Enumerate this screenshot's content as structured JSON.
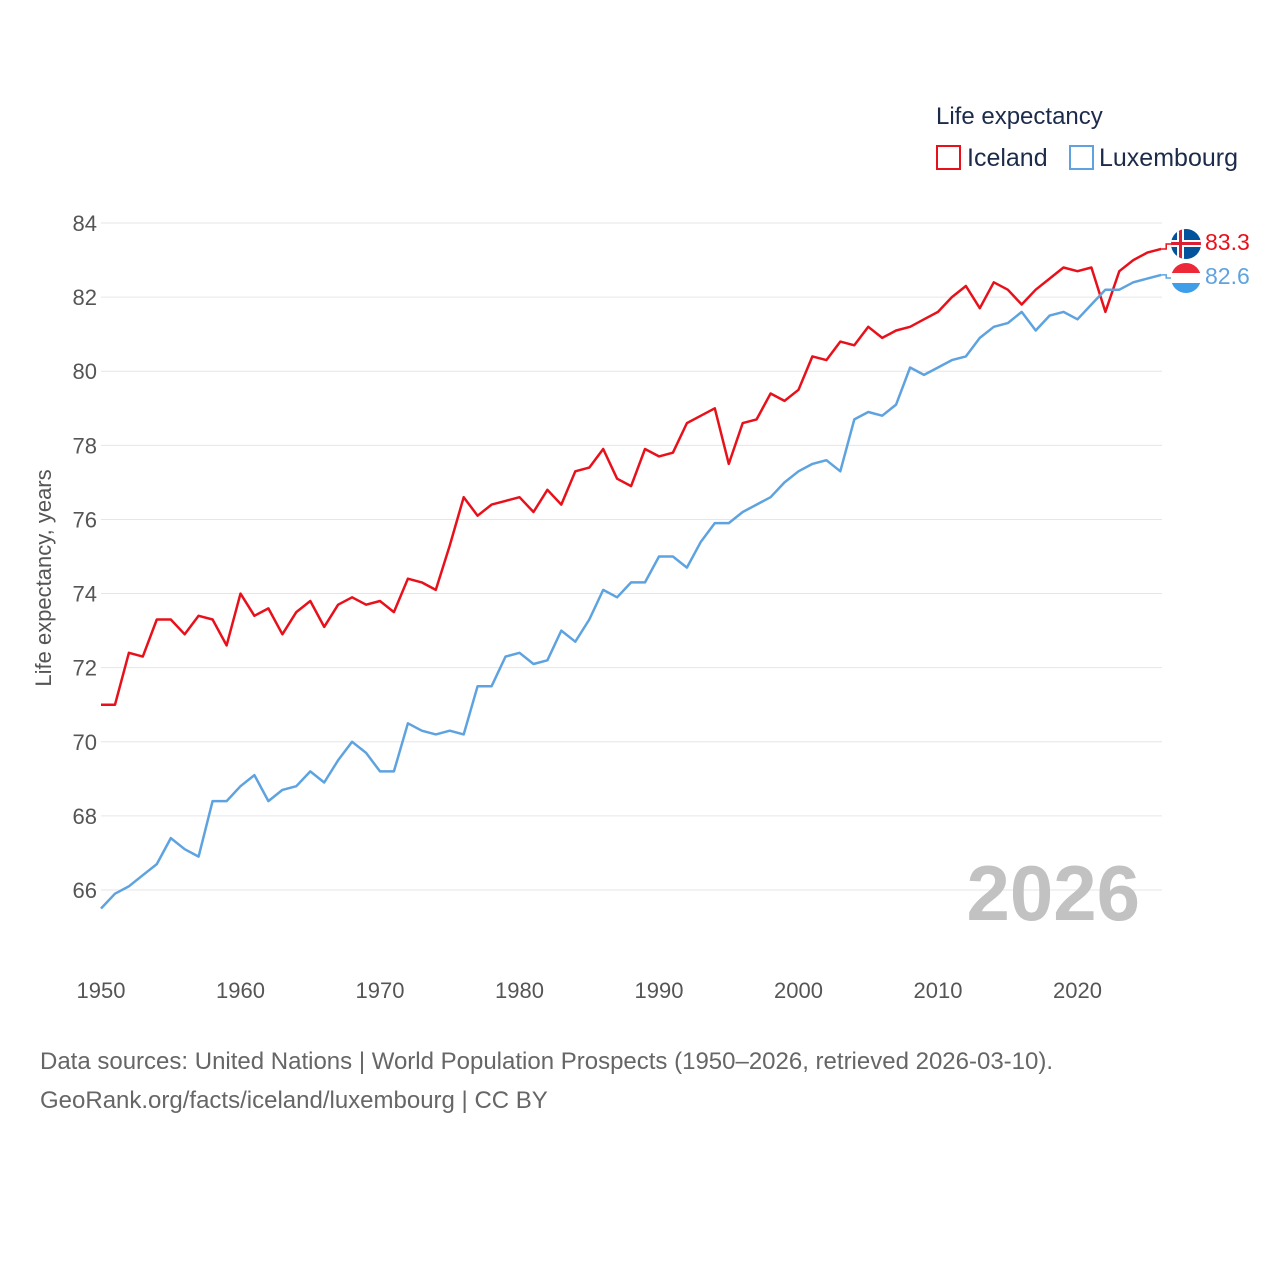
{
  "chart_data": {
    "type": "line",
    "legend_title": "Life expectancy",
    "ylabel": "Life expectancy, years",
    "xlabel": "",
    "xlim": [
      1950,
      2026
    ],
    "ylim": [
      64.5,
      84.5
    ],
    "yticks": [
      66,
      68,
      70,
      72,
      74,
      76,
      78,
      80,
      82,
      84
    ],
    "xticks": [
      1950,
      1960,
      1970,
      1980,
      1990,
      2000,
      2010,
      2020
    ],
    "current_year": "2026",
    "x": [
      1950,
      1951,
      1952,
      1953,
      1954,
      1955,
      1956,
      1957,
      1958,
      1959,
      1960,
      1961,
      1962,
      1963,
      1964,
      1965,
      1966,
      1967,
      1968,
      1969,
      1970,
      1971,
      1972,
      1973,
      1974,
      1975,
      1976,
      1977,
      1978,
      1979,
      1980,
      1981,
      1982,
      1983,
      1984,
      1985,
      1986,
      1987,
      1988,
      1989,
      1990,
      1991,
      1992,
      1993,
      1994,
      1995,
      1996,
      1997,
      1998,
      1999,
      2000,
      2001,
      2002,
      2003,
      2004,
      2005,
      2006,
      2007,
      2008,
      2009,
      2010,
      2011,
      2012,
      2013,
      2014,
      2015,
      2016,
      2017,
      2018,
      2019,
      2020,
      2021,
      2022,
      2023,
      2024,
      2025,
      2026
    ],
    "series": [
      {
        "name": "Iceland",
        "color": "#e8111b",
        "end_label": "83.3",
        "values": [
          71.0,
          71.0,
          72.4,
          72.3,
          73.3,
          73.3,
          72.9,
          73.4,
          73.3,
          72.6,
          74.0,
          73.4,
          73.6,
          72.9,
          73.5,
          73.8,
          73.1,
          73.7,
          73.9,
          73.7,
          73.8,
          73.5,
          74.4,
          74.3,
          74.1,
          75.3,
          76.6,
          76.1,
          76.4,
          76.5,
          76.6,
          76.2,
          76.8,
          76.4,
          77.3,
          77.4,
          77.9,
          77.1,
          76.9,
          77.9,
          77.7,
          77.8,
          78.6,
          78.8,
          79.0,
          77.5,
          78.6,
          78.7,
          79.4,
          79.2,
          79.5,
          80.4,
          80.3,
          80.8,
          80.7,
          81.2,
          80.9,
          81.1,
          81.2,
          81.4,
          81.6,
          82.0,
          82.3,
          81.7,
          82.4,
          82.2,
          81.8,
          82.2,
          82.5,
          82.8,
          82.7,
          82.8,
          81.6,
          82.7,
          83.0,
          83.2,
          83.3
        ]
      },
      {
        "name": "Luxembourg",
        "color": "#5ea3e0",
        "end_label": "82.6",
        "values": [
          65.5,
          65.9,
          66.1,
          66.4,
          66.7,
          67.4,
          67.1,
          66.9,
          68.4,
          68.4,
          68.8,
          69.1,
          68.4,
          68.7,
          68.8,
          69.2,
          68.9,
          69.5,
          70.0,
          69.7,
          69.2,
          69.2,
          70.5,
          70.3,
          70.2,
          70.3,
          70.2,
          71.5,
          71.5,
          72.3,
          72.4,
          72.1,
          72.2,
          73.0,
          72.7,
          73.3,
          74.1,
          73.9,
          74.3,
          74.3,
          75.0,
          75.0,
          74.7,
          75.4,
          75.9,
          75.9,
          76.2,
          76.4,
          76.6,
          77.0,
          77.3,
          77.5,
          77.6,
          77.3,
          78.7,
          78.9,
          78.8,
          79.1,
          80.1,
          79.9,
          80.1,
          80.3,
          80.4,
          80.9,
          81.2,
          81.3,
          81.6,
          81.1,
          81.5,
          81.6,
          81.4,
          81.8,
          82.2,
          82.2,
          82.4,
          82.5,
          82.6
        ]
      }
    ]
  },
  "footer": {
    "line1": "Data sources: United Nations | World Population Prospects (1950–2026, retrieved 2026-03-10).",
    "line2": "GeoRank.org/facts/iceland/luxembourg | CC BY"
  }
}
